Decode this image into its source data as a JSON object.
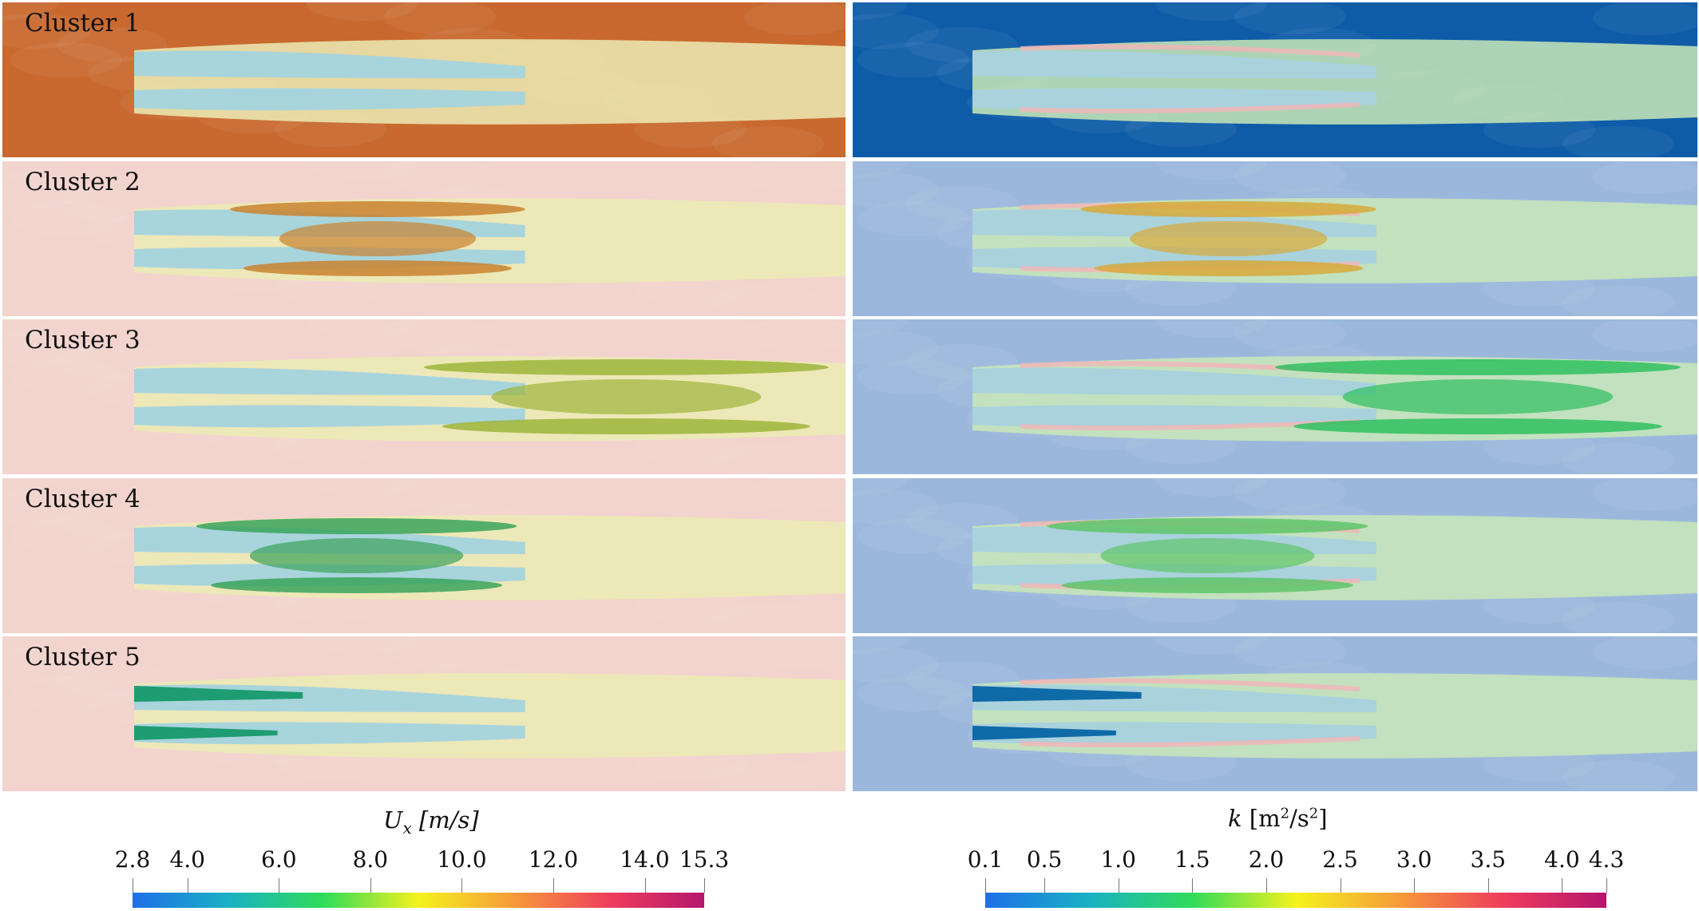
{
  "figure": {
    "clusters": [
      {
        "label": "Cluster 1"
      },
      {
        "label": "Cluster 2"
      },
      {
        "label": "Cluster 3"
      },
      {
        "label": "Cluster 4"
      },
      {
        "label": "Cluster 5"
      }
    ],
    "panel_types": [
      "velocity",
      "turbulent-kinetic-energy"
    ]
  },
  "legends": {
    "velocity": {
      "title_var": "U",
      "title_sub": "x",
      "title_unit": "[m/s]",
      "min": 2.8,
      "max": 15.3,
      "ticks": [
        "2.8",
        "4.0",
        "6.0",
        "8.0",
        "10.0",
        "12.0",
        "14.0",
        "15.3"
      ],
      "colormap": [
        "#1f6fe8",
        "#19b1c4",
        "#2fdc5a",
        "#f5f21c",
        "#f79b3a",
        "#ef3d5c",
        "#b5166e"
      ]
    },
    "tke": {
      "title_var": "k",
      "title_unit_pre": "[m",
      "title_unit_sup1": "2",
      "title_unit_mid": "/s",
      "title_unit_sup2": "2",
      "title_unit_post": "]",
      "min": 0.1,
      "max": 4.3,
      "ticks": [
        "0.1",
        "0.5",
        "1.0",
        "1.5",
        "2.0",
        "2.5",
        "3.0",
        "3.5",
        "4.0",
        "4.3"
      ],
      "colormap": [
        "#1f6fe8",
        "#19b1c4",
        "#2fdc5a",
        "#f5f21c",
        "#f79b3a",
        "#ef3d5c",
        "#b5166e"
      ]
    }
  },
  "colors": {
    "ux_background_c1": "#c9692f",
    "ux_background_other": "#f2d3cd",
    "ux_jet_core": "#a8d4dc",
    "ux_wake": "#ecebb4",
    "k_background_c1": "#0e5ca8",
    "k_background_other": "#9bb8dc",
    "k_jet_core": "#a9d2dd",
    "k_wake": "#c9e7b8"
  }
}
